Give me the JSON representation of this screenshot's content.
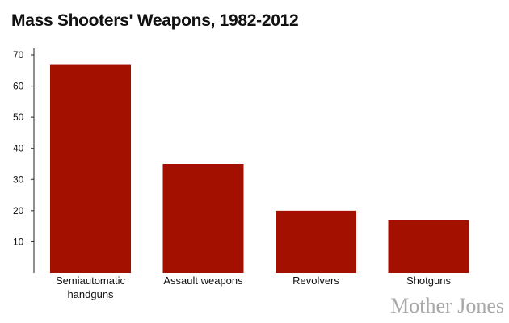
{
  "chart_data": {
    "type": "bar",
    "title": "Mass Shooters' Weapons, 1982-2012",
    "xlabel": "",
    "ylabel": "",
    "categories": [
      "Semiautomatic handguns",
      "Assault weapons",
      "Revolvers",
      "Shotguns"
    ],
    "category_lines": [
      [
        "Semiautomatic",
        "handguns"
      ],
      [
        "Assault weapons"
      ],
      [
        "Revolvers"
      ],
      [
        "Shotguns"
      ]
    ],
    "values": [
      67,
      35,
      20,
      17
    ],
    "ylim": [
      0,
      70
    ],
    "yticks": [
      10,
      20,
      30,
      40,
      50,
      60,
      70
    ],
    "grid": false,
    "bar_color": "#a41000"
  },
  "branding": {
    "logo_text": "Mother Jones"
  }
}
